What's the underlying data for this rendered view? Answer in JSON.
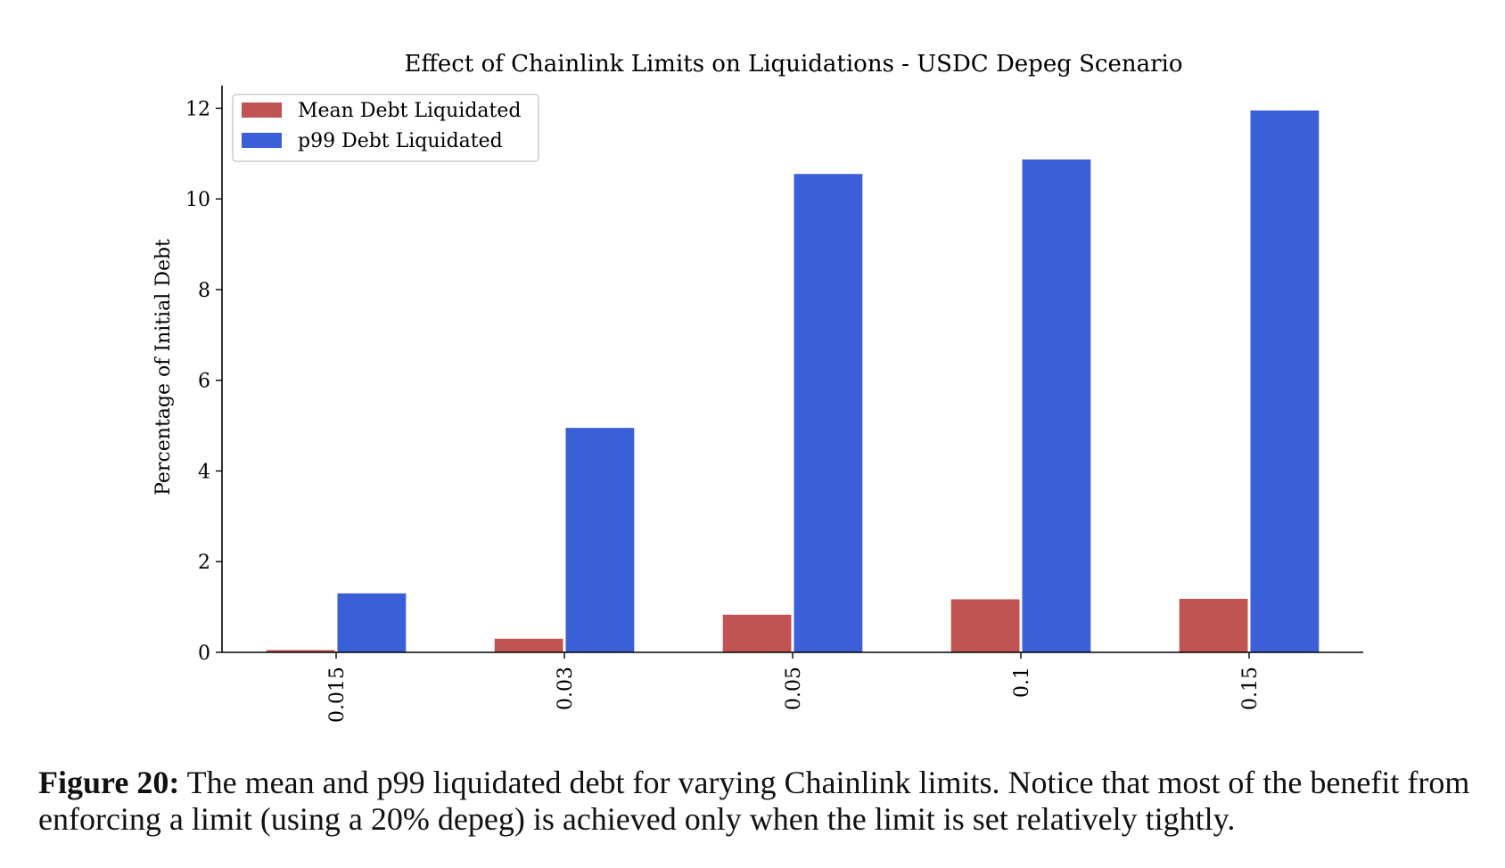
{
  "chart_data": {
    "type": "bar",
    "title": "Effect of Chainlink Limits on Liquidations - USDC Depeg Scenario",
    "xlabel": "",
    "ylabel": "Percentage of Initial Debt",
    "categories": [
      "0.015",
      "0.03",
      "0.05",
      "0.1",
      "0.15"
    ],
    "series": [
      {
        "name": "Mean Debt Liquidated",
        "color": "#c05452",
        "values": [
          0.05,
          0.3,
          0.83,
          1.17,
          1.18
        ]
      },
      {
        "name": "p99 Debt Liquidated",
        "color": "#3a5fd6",
        "values": [
          1.3,
          4.95,
          10.55,
          10.87,
          11.95
        ]
      }
    ],
    "ylim": [
      0,
      12.5
    ],
    "yticks": [
      0,
      2,
      4,
      6,
      8,
      10,
      12
    ],
    "grid": false,
    "legend": "top-left"
  },
  "caption": {
    "label": "Figure 20:",
    "text": " The mean and p99 liquidated debt for varying Chainlink limits. Notice that most of the benefit from enforcing a limit (using a 20% depeg) is achieved only when the limit is set relatively tightly."
  }
}
